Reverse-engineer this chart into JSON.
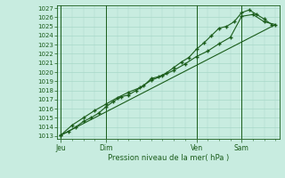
{
  "xlabel": "Pression niveau de la mer( hPa )",
  "bg_color": "#c8ece0",
  "grid_color": "#a8d8c8",
  "line_color": "#1a5c1a",
  "marker_color": "#1a5c1a",
  "ylim": [
    1013,
    1027
  ],
  "yticks": [
    1013,
    1014,
    1015,
    1016,
    1017,
    1018,
    1019,
    1020,
    1021,
    1022,
    1023,
    1024,
    1025,
    1026,
    1027
  ],
  "xtick_labels": [
    "Jeu",
    "Dim",
    "Ven",
    "Sam"
  ],
  "xtick_positions": [
    0,
    12,
    36,
    48
  ],
  "vline_positions": [
    0,
    12,
    36,
    48
  ],
  "line1_x": [
    0,
    2,
    4,
    6,
    8,
    10,
    12,
    14,
    16,
    18,
    20,
    22,
    24,
    26,
    28,
    30,
    32,
    34,
    36,
    38,
    40,
    42,
    44,
    46,
    48,
    50,
    52,
    54,
    56
  ],
  "line1_y": [
    1013.1,
    1013.5,
    1014.0,
    1014.6,
    1015.0,
    1015.5,
    1016.2,
    1016.8,
    1017.3,
    1017.5,
    1018.0,
    1018.5,
    1019.3,
    1019.5,
    1019.9,
    1020.5,
    1021.1,
    1021.6,
    1022.5,
    1023.2,
    1024.0,
    1024.8,
    1025.0,
    1025.5,
    1026.5,
    1026.8,
    1026.3,
    1025.8,
    1025.2
  ],
  "line2_x": [
    0,
    3,
    6,
    9,
    12,
    15,
    18,
    21,
    24,
    27,
    30,
    33,
    36,
    39,
    42,
    45,
    48,
    51,
    54,
    57
  ],
  "line2_y": [
    1013.1,
    1014.2,
    1015.0,
    1015.8,
    1016.5,
    1017.2,
    1017.8,
    1018.3,
    1019.1,
    1019.6,
    1020.2,
    1020.9,
    1021.7,
    1022.3,
    1023.1,
    1023.8,
    1026.1,
    1026.3,
    1025.5,
    1025.2
  ],
  "line3_x": [
    0,
    57
  ],
  "line3_y": [
    1013.1,
    1025.2
  ],
  "xlim": [
    -1,
    58
  ]
}
